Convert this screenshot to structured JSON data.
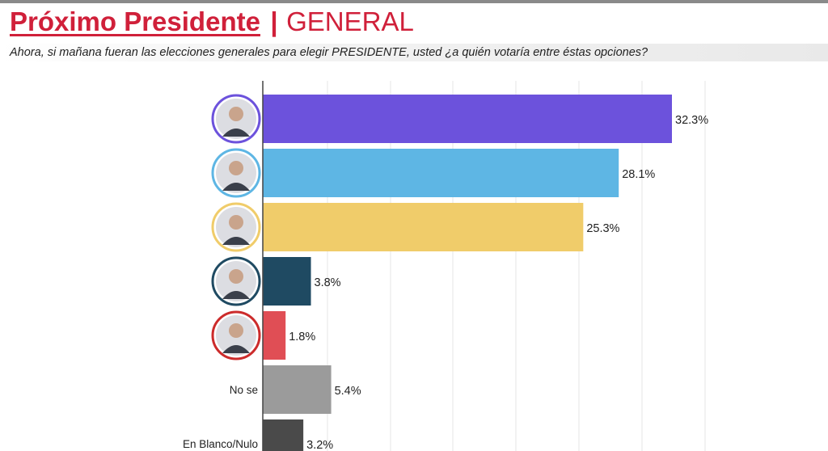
{
  "header": {
    "title": "Próximo Presidente",
    "separator": "|",
    "subtitle": "GENERAL",
    "question": "Ahora, si mañana fueran las elecciones generales para elegir PRESIDENTE, usted ¿a quién votaría entre éstas opciones?"
  },
  "colors": {
    "accent": "#d0203a"
  },
  "chart_data": {
    "type": "bar",
    "orientation": "horizontal",
    "title": "Próximo Presidente | GENERAL",
    "categories": [
      "",
      "",
      "",
      "",
      "",
      "No se",
      "En Blanco/Nulo"
    ],
    "category_icons": [
      "candidate-1-photo",
      "candidate-2-photo",
      "candidate-3-photo",
      "candidate-4-photo",
      "candidate-5-photo",
      "",
      ""
    ],
    "values": [
      32.3,
      28.1,
      25.3,
      3.8,
      1.8,
      5.4,
      3.2
    ],
    "value_labels": [
      "32.3%",
      "28.1%",
      "25.3%",
      "3.8%",
      "1.8%",
      "5.4%",
      "3.2%"
    ],
    "colors": [
      "#6c52dc",
      "#5eb6e4",
      "#f0cc6a",
      "#1f4a62",
      "#e04e55",
      "#9b9b9b",
      "#4a4a4a"
    ],
    "ring_colors": [
      "#6c52dc",
      "#5eb6e4",
      "#f0cc6a",
      "#1f4a62",
      "#cc2b2b",
      "",
      ""
    ],
    "xlim": [
      0,
      35
    ],
    "grid": true
  }
}
